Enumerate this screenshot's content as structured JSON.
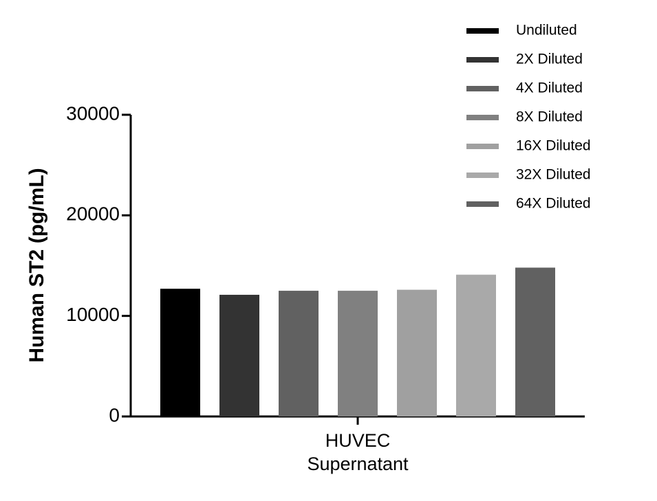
{
  "chart_data": {
    "type": "bar",
    "y_label": "Human ST2 (pg/mL)",
    "categories": [
      "HUVEC Supernatant"
    ],
    "series": [
      {
        "name": "Undiluted",
        "color": "#000000",
        "values": [
          12700
        ]
      },
      {
        "name": "2X Diluted",
        "color": "#333333",
        "values": [
          12100
        ]
      },
      {
        "name": "4X Diluted",
        "color": "#616161",
        "values": [
          12500
        ]
      },
      {
        "name": "8X Diluted",
        "color": "#808080",
        "values": [
          12500
        ]
      },
      {
        "name": "16X Diluted",
        "color": "#a0a0a0",
        "values": [
          12600
        ]
      },
      {
        "name": "32X Diluted",
        "color": "#a9a9a9",
        "values": [
          14100
        ]
      },
      {
        "name": "64X Diluted",
        "color": "#616161",
        "values": [
          14800
        ]
      }
    ],
    "ylim": [
      0,
      30000
    ],
    "yticks": [
      0,
      10000,
      20000,
      30000
    ]
  }
}
